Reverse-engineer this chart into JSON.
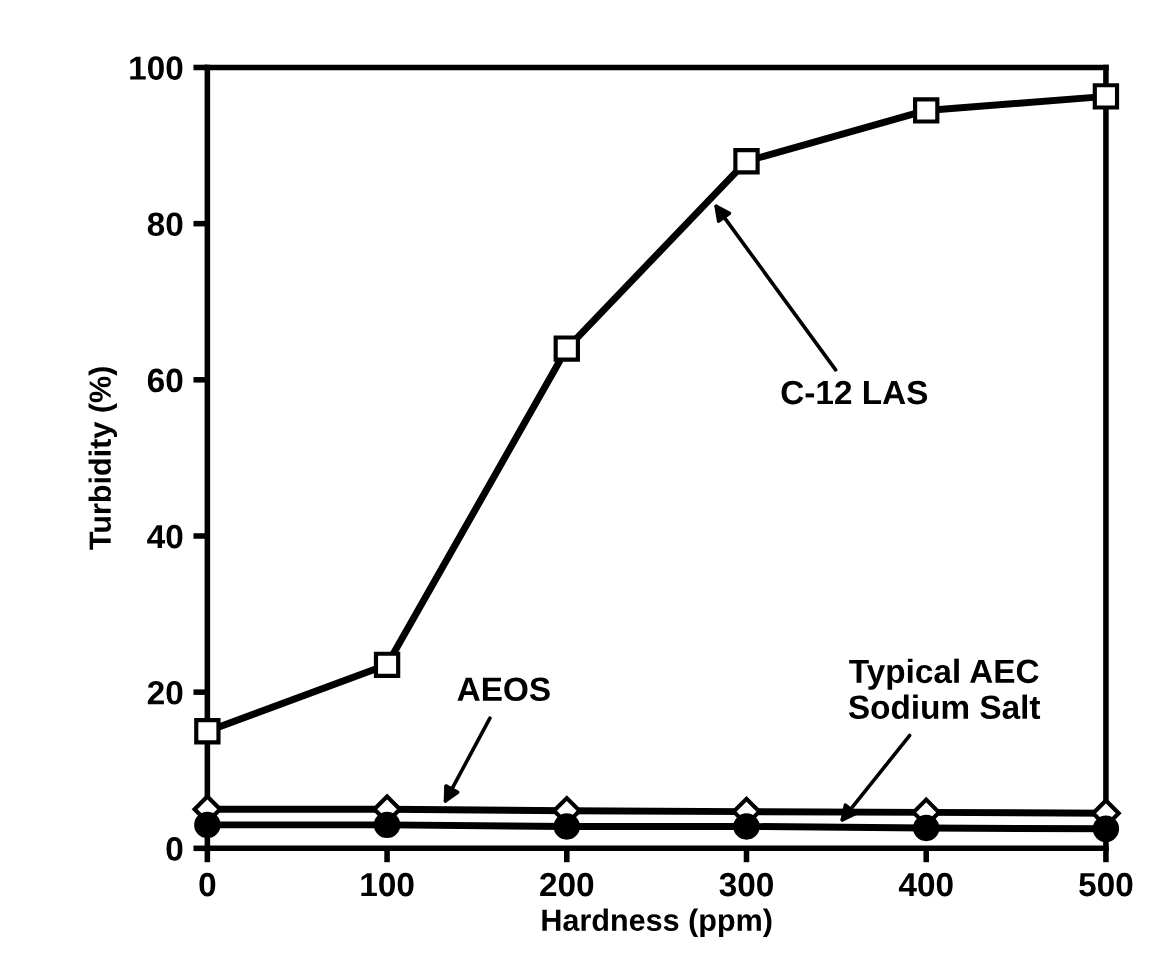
{
  "chart_data": {
    "type": "line",
    "xlabel": "Hardness (ppm)",
    "ylabel": "Turbidity (%)",
    "x": [
      0,
      100,
      200,
      300,
      400,
      500
    ],
    "series": [
      {
        "color": "#000000",
        "marker": "square",
        "values": [
          15,
          23.5,
          64,
          88,
          94.5,
          96.3
        ]
      },
      {
        "color": "#000000",
        "marker": "diamond",
        "values": [
          5,
          5,
          4.8,
          4.7,
          4.6,
          4.5
        ]
      },
      {
        "color": "#000000",
        "marker": "circle",
        "values": [
          3,
          3,
          2.8,
          2.8,
          2.6,
          2.5
        ]
      }
    ],
    "annotations": [
      {
        "text": "C-12 LAS",
        "x": 280,
        "y": 83.2
      },
      {
        "text": "AEOS",
        "x": 130,
        "y": 5
      },
      {
        "text": "Typical AEC\nSodium Salt",
        "x": 350,
        "y": 2.7
      }
    ],
    "xlim": [
      0,
      500
    ],
    "ylim": [
      0,
      100
    ],
    "xticks": [
      0,
      100,
      200,
      300,
      400,
      500
    ],
    "yticks": [
      0,
      20,
      40,
      60,
      80,
      100
    ],
    "grid": false,
    "legend": false,
    "line_style": "solid"
  }
}
